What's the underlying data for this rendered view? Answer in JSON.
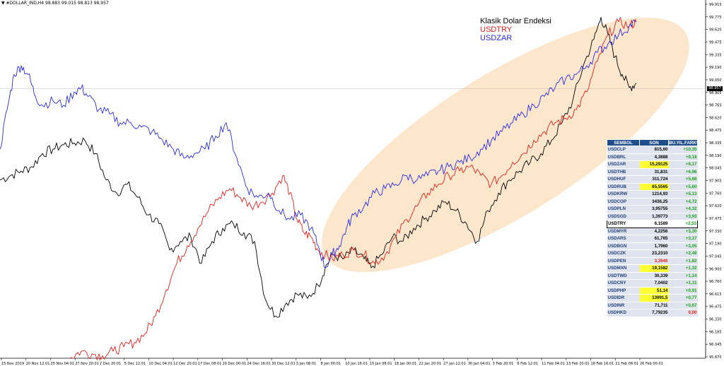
{
  "header": {
    "text": "▼ #DOLLAR_IND,H4  98.883 99.015 98.813 98.957"
  },
  "legend": [
    {
      "label": "Klasik Dolar Endeksi",
      "color": "#000000"
    },
    {
      "label": "USDTRY",
      "color": "#e8201c"
    },
    {
      "label": "USDZAR",
      "color": "#2a2ae0"
    }
  ],
  "current_price": "98.957",
  "chart_data": {
    "type": "line",
    "ylim": [
      95.87,
      99.915
    ],
    "yticks": [
      "99.915",
      "99.775",
      "99.620",
      "99.475",
      "99.335",
      "99.190",
      "99.050",
      "98.905",
      "98.765",
      "98.620",
      "98.475",
      "98.335",
      "98.190",
      "98.045",
      "97.905",
      "97.760",
      "97.620",
      "97.475",
      "97.330",
      "97.190",
      "97.045",
      "96.900",
      "96.760",
      "96.615",
      "96.475",
      "96.330",
      "96.185",
      "96.045",
      "95.870"
    ],
    "xticks": [
      "15 Nov 2019",
      "20 Nov 12:01",
      "25 Nov 04:01",
      "27 Nov 20:01",
      "2 Dec 20:01",
      "5 Dec 12:01",
      "10 Dec 04:01",
      "12 Dec 20:01",
      "17 Dec 08:01",
      "20 Dec 00:01",
      "24 Dec 16:01",
      "30 Dec 12:01",
      "3 Jan 08:01",
      "8 Jan 00:01",
      "10 Jan 16:01",
      "15 Jan 08:01",
      "18 Jan 00:01",
      "22 Jan 20:01",
      "27 Jan 12:01",
      "30 Jan 04:01",
      "3 Feb 20:01",
      "6 Feb 12:01",
      "11 Feb 04:01",
      "13 Feb 20:01",
      "18 Feb 16:01",
      "21 Feb 08:01",
      "26 Feb 00:01"
    ],
    "x_range": [
      0,
      900
    ],
    "series": [
      {
        "name": "Klasik Dolar Endeksi",
        "color": "#000000",
        "points": [
          [
            0,
            97.9
          ],
          [
            15,
            97.95
          ],
          [
            30,
            98.0
          ],
          [
            45,
            98.05
          ],
          [
            60,
            98.2
          ],
          [
            75,
            98.25
          ],
          [
            90,
            98.3
          ],
          [
            105,
            98.32
          ],
          [
            120,
            98.35
          ],
          [
            135,
            98.2
          ],
          [
            150,
            97.9
          ],
          [
            165,
            97.75
          ],
          [
            180,
            97.85
          ],
          [
            195,
            97.7
          ],
          [
            210,
            97.5
          ],
          [
            225,
            97.4
          ],
          [
            240,
            97.1
          ],
          [
            255,
            97.2
          ],
          [
            270,
            97.25
          ],
          [
            285,
            96.95
          ],
          [
            300,
            97.2
          ],
          [
            315,
            97.35
          ],
          [
            330,
            97.4
          ],
          [
            345,
            97.3
          ],
          [
            360,
            97.2
          ],
          [
            375,
            96.55
          ],
          [
            390,
            96.35
          ],
          [
            405,
            96.5
          ],
          [
            420,
            96.6
          ],
          [
            435,
            96.55
          ],
          [
            450,
            96.7
          ],
          [
            460,
            96.9
          ],
          [
            470,
            97.05
          ],
          [
            485,
            97.0
          ],
          [
            500,
            97.1
          ],
          [
            515,
            97.0
          ],
          [
            525,
            96.9
          ],
          [
            540,
            97.05
          ],
          [
            555,
            97.25
          ],
          [
            570,
            97.2
          ],
          [
            585,
            97.35
          ],
          [
            600,
            97.45
          ],
          [
            615,
            97.55
          ],
          [
            630,
            97.65
          ],
          [
            645,
            97.55
          ],
          [
            660,
            97.4
          ],
          [
            675,
            97.2
          ],
          [
            690,
            97.55
          ],
          [
            705,
            97.75
          ],
          [
            720,
            97.9
          ],
          [
            735,
            98.0
          ],
          [
            750,
            98.1
          ],
          [
            765,
            98.2
          ],
          [
            780,
            98.35
          ],
          [
            795,
            98.55
          ],
          [
            810,
            98.8
          ],
          [
            825,
            99.2
          ],
          [
            840,
            99.5
          ],
          [
            850,
            99.75
          ],
          [
            860,
            99.55
          ],
          [
            870,
            99.3
          ],
          [
            880,
            99.1
          ],
          [
            890,
            98.95
          ],
          [
            900,
            99.0
          ]
        ]
      },
      {
        "name": "USDTRY",
        "color": "#e8201c",
        "points": [
          [
            100,
            95.88
          ],
          [
            115,
            95.95
          ],
          [
            130,
            95.92
          ],
          [
            145,
            95.9
          ],
          [
            160,
            95.95
          ],
          [
            175,
            96.0
          ],
          [
            190,
            96.05
          ],
          [
            205,
            96.15
          ],
          [
            220,
            96.35
          ],
          [
            235,
            96.65
          ],
          [
            250,
            96.95
          ],
          [
            265,
            97.15
          ],
          [
            280,
            97.35
          ],
          [
            295,
            97.55
          ],
          [
            310,
            97.7
          ],
          [
            325,
            97.8
          ],
          [
            340,
            97.7
          ],
          [
            355,
            97.6
          ],
          [
            370,
            97.65
          ],
          [
            385,
            97.75
          ],
          [
            400,
            97.95
          ],
          [
            410,
            97.75
          ],
          [
            420,
            97.45
          ],
          [
            430,
            97.3
          ],
          [
            440,
            97.25
          ],
          [
            450,
            97.1
          ],
          [
            460,
            97.05
          ],
          [
            470,
            97.0
          ],
          [
            485,
            97.05
          ],
          [
            500,
            97.1
          ],
          [
            515,
            97.05
          ],
          [
            530,
            96.95
          ],
          [
            545,
            97.05
          ],
          [
            560,
            97.25
          ],
          [
            575,
            97.45
          ],
          [
            590,
            97.6
          ],
          [
            605,
            97.75
          ],
          [
            620,
            97.85
          ],
          [
            635,
            97.95
          ],
          [
            650,
            98.0
          ],
          [
            665,
            98.05
          ],
          [
            680,
            97.95
          ],
          [
            695,
            97.85
          ],
          [
            710,
            97.95
          ],
          [
            725,
            98.1
          ],
          [
            740,
            98.2
          ],
          [
            755,
            98.35
          ],
          [
            770,
            98.45
          ],
          [
            785,
            98.55
          ],
          [
            800,
            98.6
          ],
          [
            815,
            98.7
          ],
          [
            830,
            98.9
          ],
          [
            845,
            99.25
          ],
          [
            860,
            99.55
          ],
          [
            875,
            99.7
          ],
          [
            890,
            99.65
          ],
          [
            900,
            99.7
          ]
        ]
      },
      {
        "name": "USDZAR",
        "color": "#2a2ae0",
        "points": [
          [
            0,
            98.25
          ],
          [
            10,
            98.7
          ],
          [
            20,
            99.1
          ],
          [
            30,
            99.2
          ],
          [
            40,
            99.1
          ],
          [
            50,
            98.85
          ],
          [
            60,
            98.75
          ],
          [
            75,
            98.8
          ],
          [
            90,
            98.75
          ],
          [
            105,
            98.9
          ],
          [
            115,
            98.95
          ],
          [
            125,
            98.85
          ],
          [
            140,
            98.7
          ],
          [
            155,
            98.65
          ],
          [
            170,
            98.55
          ],
          [
            185,
            98.55
          ],
          [
            200,
            98.5
          ],
          [
            215,
            98.45
          ],
          [
            230,
            98.35
          ],
          [
            245,
            98.25
          ],
          [
            260,
            98.15
          ],
          [
            275,
            98.2
          ],
          [
            290,
            98.25
          ],
          [
            305,
            98.4
          ],
          [
            320,
            98.55
          ],
          [
            335,
            98.15
          ],
          [
            350,
            97.8
          ],
          [
            365,
            97.7
          ],
          [
            380,
            97.75
          ],
          [
            395,
            97.55
          ],
          [
            410,
            97.45
          ],
          [
            425,
            97.5
          ],
          [
            440,
            97.35
          ],
          [
            450,
            97.15
          ],
          [
            460,
            96.9
          ],
          [
            470,
            97.05
          ],
          [
            480,
            97.15
          ],
          [
            490,
            97.35
          ],
          [
            500,
            97.5
          ],
          [
            515,
            97.6
          ],
          [
            530,
            97.75
          ],
          [
            545,
            97.8
          ],
          [
            560,
            97.85
          ],
          [
            575,
            97.95
          ],
          [
            590,
            97.9
          ],
          [
            605,
            97.95
          ],
          [
            620,
            98.0
          ],
          [
            635,
            98.05
          ],
          [
            650,
            98.1
          ],
          [
            665,
            98.15
          ],
          [
            680,
            98.25
          ],
          [
            695,
            98.35
          ],
          [
            710,
            98.45
          ],
          [
            725,
            98.55
          ],
          [
            740,
            98.65
          ],
          [
            755,
            98.75
          ],
          [
            770,
            98.85
          ],
          [
            785,
            98.95
          ],
          [
            800,
            99.05
          ],
          [
            815,
            99.1
          ],
          [
            830,
            99.2
          ],
          [
            845,
            99.35
          ],
          [
            860,
            99.45
          ],
          [
            875,
            99.55
          ],
          [
            890,
            99.65
          ],
          [
            900,
            99.7
          ]
        ]
      }
    ],
    "grid": false,
    "annotation": "shaded ellipse highlighting Jan–Feb uptrend"
  },
  "table": {
    "headers": [
      "SEMBOL",
      "SON",
      "BU.YIL.FARK%"
    ],
    "rows": [
      {
        "sym": "USDCLP",
        "last": "815,60",
        "chg": "+10,35",
        "chg_color": "#1aa21a",
        "yellow": false,
        "boxed": false,
        "last_color": "#000000"
      },
      {
        "sym": "USDBRL",
        "last": "4,3888",
        "chg": "+9,18",
        "chg_color": "#1aa21a",
        "yellow": false,
        "boxed": false,
        "last_color": "#000000"
      },
      {
        "sym": "USDZAR",
        "last": "15,29125",
        "chg": "+9,17",
        "chg_color": "#1aa21a",
        "yellow": true,
        "boxed": false,
        "last_color": "#000000"
      },
      {
        "sym": "USDTHB",
        "last": "31,831",
        "chg": "+6,96",
        "chg_color": "#1aa21a",
        "yellow": false,
        "boxed": false,
        "last_color": "#000000"
      },
      {
        "sym": "USDHUF",
        "last": "311,724",
        "chg": "+5,68",
        "chg_color": "#1aa21a",
        "yellow": false,
        "boxed": false,
        "last_color": "#000000"
      },
      {
        "sym": "USDRUB",
        "last": "65,5565",
        "chg": "+5,60",
        "chg_color": "#1aa21a",
        "yellow": true,
        "boxed": false,
        "last_color": "#000000"
      },
      {
        "sym": "USDKRW",
        "last": "1214,93",
        "chg": "+5,13",
        "chg_color": "#1aa21a",
        "yellow": false,
        "boxed": false,
        "last_color": "#000000"
      },
      {
        "sym": "USDCOP",
        "last": "3436,25",
        "chg": "+4,72",
        "chg_color": "#1aa21a",
        "yellow": false,
        "boxed": false,
        "last_color": "#000000"
      },
      {
        "sym": "USDPLN",
        "last": "3,95755",
        "chg": "+4,32",
        "chg_color": "#1aa21a",
        "yellow": false,
        "boxed": false,
        "last_color": "#000000"
      },
      {
        "sym": "USDSGD",
        "last": "1,39773",
        "chg": "+3,93",
        "chg_color": "#1aa21a",
        "yellow": false,
        "boxed": false,
        "last_color": "#000000"
      },
      {
        "sym": "USDTRY",
        "last": "6,1589",
        "chg": "+3,53",
        "chg_color": "#1aa21a",
        "yellow": false,
        "boxed": true,
        "last_color": "#000000"
      },
      {
        "sym": "USDMYR",
        "last": "4,2256",
        "chg": "+3,30",
        "chg_color": "#1aa21a",
        "yellow": false,
        "boxed": false,
        "last_color": "#000000"
      },
      {
        "sym": "USDARS",
        "last": "61,765",
        "chg": "+3,17",
        "chg_color": "#1aa21a",
        "yellow": false,
        "boxed": false,
        "last_color": "#000000"
      },
      {
        "sym": "USDBGN",
        "last": "1,7960",
        "chg": "+3,05",
        "chg_color": "#1aa21a",
        "yellow": false,
        "boxed": false,
        "last_color": "#000000"
      },
      {
        "sym": "USDCZK",
        "last": "23,2310",
        "chg": "+2,48",
        "chg_color": "#1aa21a",
        "yellow": false,
        "boxed": false,
        "last_color": "#000000"
      },
      {
        "sym": "USDPEN",
        "last": "3,3940",
        "chg": "+1,82",
        "chg_color": "#1aa21a",
        "yellow": false,
        "boxed": false,
        "last_color": "#e8201c"
      },
      {
        "sym": "USDMXN",
        "last": "19,1582",
        "chg": "+1,32",
        "chg_color": "#1aa21a",
        "yellow": true,
        "boxed": false,
        "last_color": "#000000"
      },
      {
        "sym": "USDTWD",
        "last": "30,339",
        "chg": "+1,14",
        "chg_color": "#1aa21a",
        "yellow": false,
        "boxed": false,
        "last_color": "#000000"
      },
      {
        "sym": "USDCNY",
        "last": "7,0402",
        "chg": "+1,11",
        "chg_color": "#1aa21a",
        "yellow": false,
        "boxed": false,
        "last_color": "#000000"
      },
      {
        "sym": "USDPHP",
        "last": "51,14",
        "chg": "+0,91",
        "chg_color": "#1aa21a",
        "yellow": true,
        "boxed": false,
        "last_color": "#000000"
      },
      {
        "sym": "USDIDR",
        "last": "13991,5",
        "chg": "+0,77",
        "chg_color": "#1aa21a",
        "yellow": true,
        "boxed": false,
        "last_color": "#000000"
      },
      {
        "sym": "USDINR",
        "last": "71,711",
        "chg": "+0,67",
        "chg_color": "#1aa21a",
        "yellow": false,
        "boxed": false,
        "last_color": "#000000"
      },
      {
        "sym": "USDHKD",
        "last": "7,79235",
        "chg": "0,00",
        "chg_color": "#e8201c",
        "yellow": false,
        "boxed": false,
        "last_color": "#000000"
      }
    ]
  }
}
